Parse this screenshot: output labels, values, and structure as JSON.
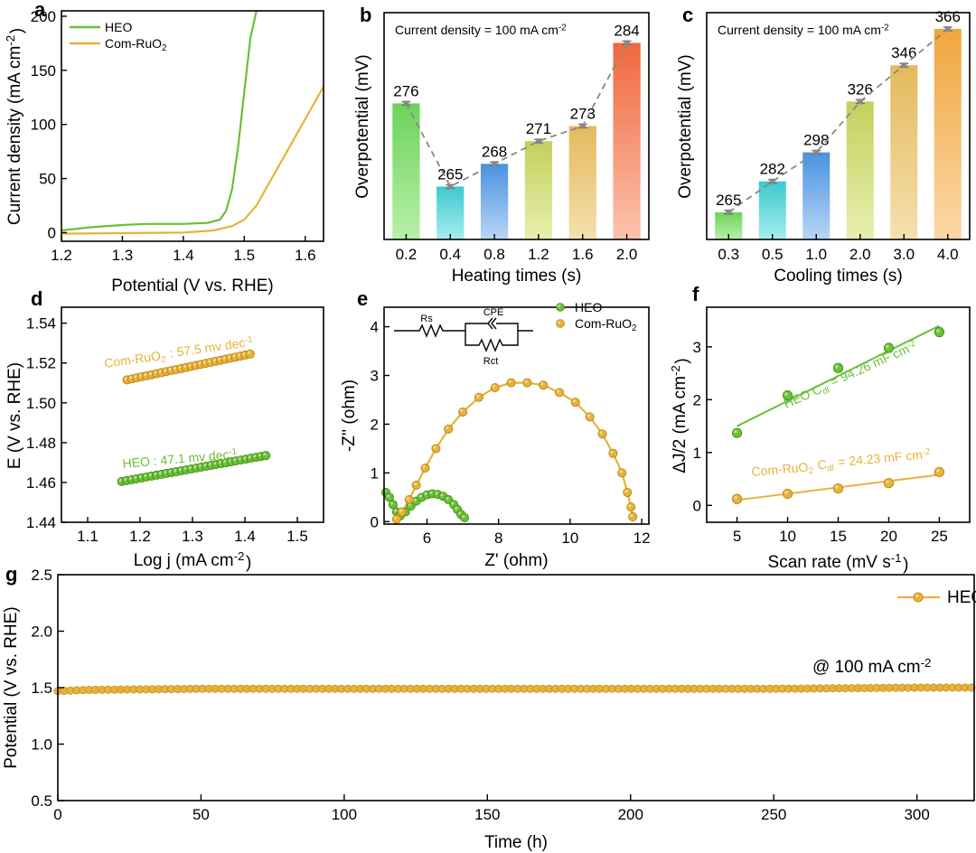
{
  "chart_data": [
    {
      "panel": "a",
      "type": "line",
      "xlabel": "Potential (V vs. RHE)",
      "ylabel": "Current density (mA cm⁻²)",
      "xlim": [
        1.2,
        1.63
      ],
      "ylim": [
        -8,
        205
      ],
      "xticks": [
        "1.2",
        "1.3",
        "1.4",
        "1.5",
        "1.6"
      ],
      "yticks": [
        "0",
        "50",
        "100",
        "150",
        "200"
      ],
      "legend_position": "top-left",
      "series": [
        {
          "name": "HEO",
          "color": "#6cbf3a",
          "x": [
            1.2,
            1.25,
            1.3,
            1.34,
            1.4,
            1.44,
            1.46,
            1.47,
            1.48,
            1.49,
            1.5,
            1.51,
            1.52
          ],
          "y": [
            2,
            5,
            7,
            8,
            8,
            9,
            12,
            20,
            40,
            80,
            130,
            180,
            205
          ]
        },
        {
          "name": "Com-RuO₂",
          "color": "#e8b23a",
          "x": [
            1.2,
            1.3,
            1.4,
            1.45,
            1.48,
            1.5,
            1.52,
            1.54,
            1.56,
            1.58,
            1.6,
            1.63
          ],
          "y": [
            -1,
            -0.5,
            0,
            2,
            6,
            12,
            25,
            45,
            65,
            85,
            105,
            135
          ]
        }
      ]
    },
    {
      "panel": "b",
      "type": "bar",
      "annotation": "Current density = 100 mA cm⁻²",
      "xlabel": "Heating times (s)",
      "ylabel": "Overpotential (mV)",
      "categories": [
        "0.2",
        "0.4",
        "0.8",
        "1.2",
        "1.6",
        "2.0"
      ],
      "values": [
        276,
        265,
        268,
        271,
        273,
        284
      ],
      "ylim": [
        258,
        288
      ],
      "bar_colors": [
        [
          "#b8f0a8",
          "#6cd35a"
        ],
        [
          "#a8eded",
          "#3cc9cf"
        ],
        [
          "#b8d6f5",
          "#4a92e0"
        ],
        [
          "#e8efb0",
          "#c3d05c"
        ],
        [
          "#f5e0b0",
          "#e5b95c"
        ],
        [
          "#fbc3ad",
          "#f0683e"
        ]
      ]
    },
    {
      "panel": "c",
      "type": "bar",
      "annotation": "Current density = 100 mA cm⁻²",
      "xlabel": "Cooling times (s)",
      "ylabel": "Overpotential (mV)",
      "categories": [
        "0.3",
        "0.5",
        "1.0",
        "2.0",
        "3.0",
        "4.0"
      ],
      "values": [
        265,
        282,
        298,
        326,
        346,
        366
      ],
      "ylim": [
        250,
        375
      ],
      "bar_colors": [
        [
          "#b8f0a8",
          "#6cd35a"
        ],
        [
          "#a8eded",
          "#3cc9cf"
        ],
        [
          "#b8d6f5",
          "#4a92e0"
        ],
        [
          "#e8efb0",
          "#c3d05c"
        ],
        [
          "#f5e0b0",
          "#e5b95c"
        ],
        [
          "#fbd8a8",
          "#f0a63e"
        ]
      ]
    },
    {
      "panel": "d",
      "type": "scatter",
      "xlabel": "Log j (mA cm⁻²)",
      "ylabel": "E (V vs. RHE)",
      "xlim": [
        1.05,
        1.55
      ],
      "ylim": [
        1.44,
        1.548
      ],
      "xticks": [
        "1.1",
        "1.2",
        "1.3",
        "1.4",
        "1.5"
      ],
      "yticks": [
        "1.44",
        "1.46",
        "1.48",
        "1.50",
        "1.52",
        "1.54"
      ],
      "series": [
        {
          "name": "Com-RuO₂",
          "label": "Com-RuO₂ : 57.5 mv dec⁻¹",
          "color": "#e8b23a",
          "x_range": [
            1.175,
            1.41
          ],
          "y_range": [
            1.5115,
            1.5245
          ],
          "points": 26
        },
        {
          "name": "HEO",
          "label": "HEO : 47.1 mv dec⁻¹",
          "color": "#6cbf3a",
          "x_range": [
            1.165,
            1.44
          ],
          "y_range": [
            1.4605,
            1.4735
          ],
          "points": 30
        }
      ]
    },
    {
      "panel": "e",
      "type": "scatter",
      "xlabel": "Z' (ohm)",
      "ylabel": "-Z'' (ohm)",
      "xlim": [
        4.8,
        12.2
      ],
      "ylim": [
        -0.05,
        4.4
      ],
      "xticks": [
        "6",
        "8",
        "10",
        "12"
      ],
      "yticks": [
        "0",
        "1",
        "2",
        "3",
        "4"
      ],
      "legend_position": "top-right",
      "circuit_labels": {
        "rs": "Rs",
        "cpe": "CPE",
        "rct": "Rct"
      },
      "series": [
        {
          "name": "HEO",
          "color": "#6cbf3a",
          "x": [
            4.85,
            4.95,
            5.05,
            5.15,
            5.25,
            5.4,
            5.55,
            5.7,
            5.85,
            6.0,
            6.15,
            6.3,
            6.45,
            6.6,
            6.75,
            6.85,
            6.95,
            7.05
          ],
          "y": [
            0.6,
            0.5,
            0.35,
            0.2,
            0.12,
            0.2,
            0.32,
            0.42,
            0.5,
            0.55,
            0.57,
            0.56,
            0.52,
            0.45,
            0.35,
            0.25,
            0.15,
            0.08
          ]
        },
        {
          "name": "Com-RuO₂",
          "color": "#e8b23a",
          "x": [
            5.15,
            5.3,
            5.5,
            5.7,
            5.95,
            6.25,
            6.6,
            7.0,
            7.45,
            7.9,
            8.35,
            8.8,
            9.25,
            9.7,
            10.15,
            10.55,
            10.9,
            11.2,
            11.45,
            11.6,
            11.7,
            11.75
          ],
          "y": [
            0.05,
            0.2,
            0.45,
            0.75,
            1.1,
            1.5,
            1.9,
            2.25,
            2.55,
            2.75,
            2.85,
            2.85,
            2.8,
            2.65,
            2.45,
            2.15,
            1.8,
            1.4,
            1.0,
            0.6,
            0.3,
            0.1
          ]
        }
      ]
    },
    {
      "panel": "f",
      "type": "scatter",
      "xlabel": "Scan rate (mV s⁻¹)",
      "ylabel": "ΔJ/2 (mA cm⁻²)",
      "xlim": [
        2,
        28
      ],
      "ylim": [
        -0.32,
        3.75
      ],
      "xticks": [
        "5",
        "10",
        "15",
        "20",
        "25"
      ],
      "yticks": [
        "0",
        "1",
        "2",
        "3"
      ],
      "series": [
        {
          "name": "HEO",
          "label": "HEO C_dl = 94.26 mF cm⁻²",
          "color": "#6cbf3a",
          "x": [
            5,
            10,
            15,
            20,
            25
          ],
          "y": [
            1.37,
            2.08,
            2.6,
            2.98,
            3.28
          ],
          "fit": [
            [
              5,
              1.5
            ],
            [
              25,
              3.4
            ]
          ]
        },
        {
          "name": "Com-RuO₂",
          "label": "Com-RuO₂ C_dl = 24.23 mF cm⁻²",
          "color": "#e8b23a",
          "x": [
            5,
            10,
            15,
            20,
            25
          ],
          "y": [
            0.12,
            0.22,
            0.32,
            0.42,
            0.63
          ],
          "fit": [
            [
              5,
              0.1
            ],
            [
              25,
              0.58
            ]
          ]
        }
      ]
    },
    {
      "panel": "g",
      "type": "line",
      "xlabel": "Time (h)",
      "ylabel": "Potential (V vs. RHE)",
      "xlim": [
        0,
        320
      ],
      "ylim": [
        0.5,
        2.5
      ],
      "xticks": [
        "0",
        "50",
        "100",
        "150",
        "200",
        "250",
        "300"
      ],
      "yticks": [
        "0.5",
        "1.0",
        "1.5",
        "2.0",
        "2.5"
      ],
      "legend_position": "top-right",
      "annotation": "@ 100 mA cm⁻²",
      "series": [
        {
          "name": "HEO",
          "color": "#e8b23a",
          "x": [
            0,
            10,
            50,
            100,
            150,
            200,
            250,
            300,
            320
          ],
          "y": [
            1.47,
            1.48,
            1.49,
            1.49,
            1.49,
            1.49,
            1.49,
            1.5,
            1.5
          ]
        }
      ]
    }
  ]
}
